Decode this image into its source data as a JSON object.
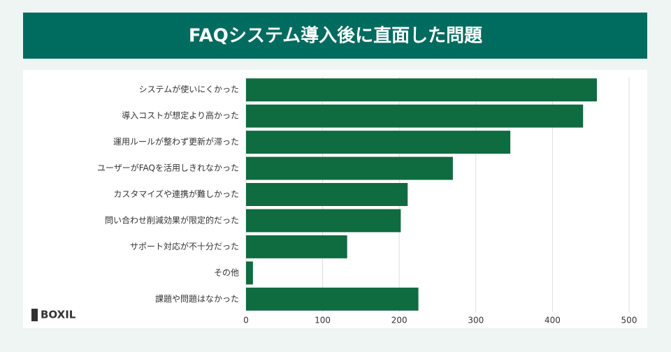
{
  "chart_data": {
    "type": "bar",
    "orientation": "horizontal",
    "title": "FAQシステム導入後に直面した問題",
    "categories": [
      "システムが使いにくかった",
      "導入コストが想定より高かった",
      "運用ルールが整わず更新が滞った",
      "ユーザーがFAQを活用しきれなかった",
      "カスタマイズや連携が難しかった",
      "問い合わせ削減効果が限定的だった",
      "サポート対応が不十分だった",
      "その他",
      "課題や問題はなかった"
    ],
    "values": [
      458,
      440,
      345,
      270,
      211,
      202,
      132,
      9,
      225
    ],
    "color": "#0f6b40",
    "xlim": [
      0,
      500
    ],
    "xticks": [
      0,
      100,
      200,
      300,
      400,
      500
    ],
    "grid": true
  },
  "brand": "BOXIL"
}
